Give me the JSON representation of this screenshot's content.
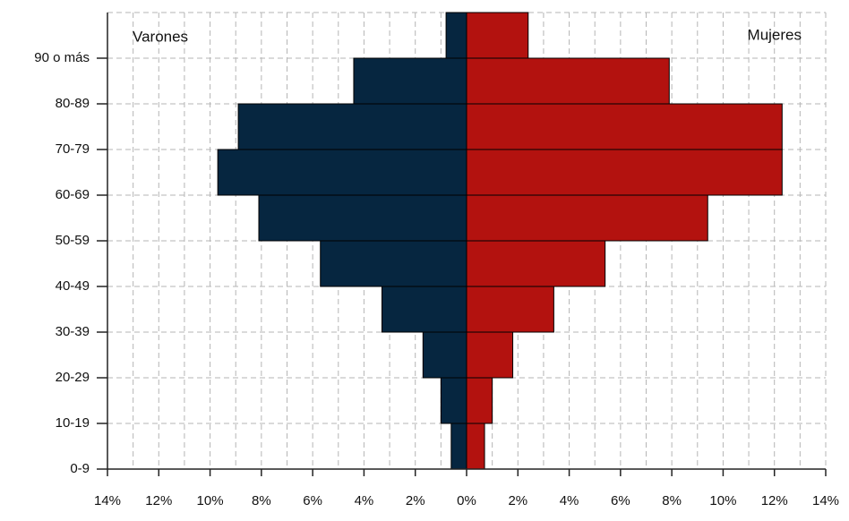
{
  "chart_data": {
    "type": "pyramid",
    "categories": [
      "0-9",
      "10-19",
      "20-29",
      "30-39",
      "40-49",
      "50-59",
      "60-69",
      "70-79",
      "80-89",
      "90 o más"
    ],
    "series": [
      {
        "name": "Varones",
        "color": "#062640",
        "values": [
          -0.6,
          -1.0,
          -1.7,
          -3.3,
          -5.7,
          -8.1,
          -9.7,
          -8.9,
          -4.4,
          -0.8
        ]
      },
      {
        "name": "Mujeres",
        "color": "#b3120f",
        "values": [
          0.7,
          1.0,
          1.8,
          3.4,
          5.4,
          9.4,
          12.3,
          12.3,
          7.9,
          2.4
        ]
      }
    ],
    "xlim": [
      -14,
      14
    ],
    "xticks": [
      {
        "value": -14,
        "label": "14%"
      },
      {
        "value": -12,
        "label": "12%"
      },
      {
        "value": -10,
        "label": "10%"
      },
      {
        "value": -8,
        "label": "8%"
      },
      {
        "value": -6,
        "label": "6%"
      },
      {
        "value": -4,
        "label": "4%"
      },
      {
        "value": -2,
        "label": "2%"
      },
      {
        "value": 0,
        "label": "0%"
      },
      {
        "value": 2,
        "label": "2%"
      },
      {
        "value": 4,
        "label": "4%"
      },
      {
        "value": 6,
        "label": "6%"
      },
      {
        "value": 8,
        "label": "8%"
      },
      {
        "value": 10,
        "label": "10%"
      },
      {
        "value": 12,
        "label": "12%"
      },
      {
        "value": 14,
        "label": "14%"
      }
    ],
    "grid": true
  }
}
